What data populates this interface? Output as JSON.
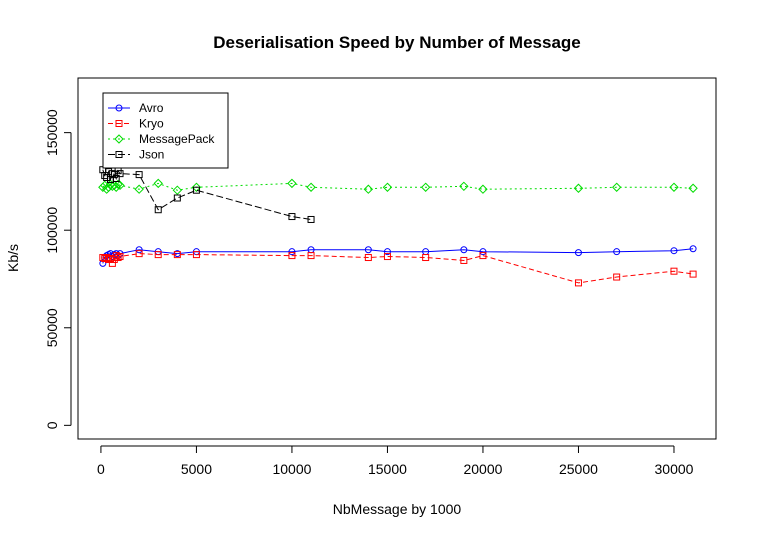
{
  "chart_data": {
    "type": "line",
    "title": "Deserialisation Speed by Number of Message",
    "xlabel": "NbMessage by 1000",
    "ylabel": "Kb/s",
    "xlim": [
      -1200,
      32200
    ],
    "ylim": [
      -7000,
      178000
    ],
    "xticks": [
      0,
      5000,
      10000,
      15000,
      20000,
      25000,
      30000
    ],
    "yticks": [
      0,
      50000,
      100000,
      150000
    ],
    "grid": false,
    "legend_position": "top-left",
    "series": [
      {
        "name": "Avro",
        "color": "#0000ff",
        "dash": "solid",
        "marker": "circle",
        "points": [
          [
            100,
            83000
          ],
          [
            200,
            86000
          ],
          [
            300,
            87000
          ],
          [
            400,
            87500
          ],
          [
            500,
            88000
          ],
          [
            600,
            86500
          ],
          [
            700,
            87500
          ],
          [
            800,
            88000
          ],
          [
            900,
            87000
          ],
          [
            1000,
            88000
          ],
          [
            2000,
            90000
          ],
          [
            3000,
            89000
          ],
          [
            4000,
            88000
          ],
          [
            5000,
            89000
          ],
          [
            10000,
            89000
          ],
          [
            11000,
            90000
          ],
          [
            14000,
            90000
          ],
          [
            15000,
            89000
          ],
          [
            17000,
            89000
          ],
          [
            19000,
            90000
          ],
          [
            20000,
            89000
          ],
          [
            25000,
            88500
          ],
          [
            27000,
            89000
          ],
          [
            30000,
            89500
          ],
          [
            31000,
            90500
          ]
        ]
      },
      {
        "name": "Kryo",
        "color": "#ff0000",
        "dash": "dashed",
        "marker": "square",
        "points": [
          [
            100,
            86000
          ],
          [
            200,
            85500
          ],
          [
            300,
            86000
          ],
          [
            400,
            85000
          ],
          [
            500,
            85500
          ],
          [
            600,
            83000
          ],
          [
            700,
            85000
          ],
          [
            800,
            87000
          ],
          [
            900,
            86000
          ],
          [
            1000,
            86500
          ],
          [
            2000,
            88000
          ],
          [
            3000,
            87500
          ],
          [
            4000,
            87500
          ],
          [
            5000,
            87500
          ],
          [
            10000,
            87000
          ],
          [
            11000,
            87000
          ],
          [
            14000,
            86000
          ],
          [
            15000,
            86500
          ],
          [
            17000,
            86000
          ],
          [
            19000,
            84500
          ],
          [
            20000,
            87000
          ],
          [
            25000,
            73000
          ],
          [
            27000,
            76000
          ],
          [
            30000,
            79000
          ],
          [
            31000,
            77500
          ]
        ]
      },
      {
        "name": "MessagePack",
        "color": "#00dd00",
        "dash": "dotted",
        "marker": "diamond",
        "points": [
          [
            100,
            122000
          ],
          [
            200,
            123000
          ],
          [
            300,
            121000
          ],
          [
            400,
            122000
          ],
          [
            500,
            123500
          ],
          [
            600,
            122500
          ],
          [
            700,
            123000
          ],
          [
            800,
            122000
          ],
          [
            900,
            123500
          ],
          [
            1000,
            123000
          ],
          [
            2000,
            121000
          ],
          [
            3000,
            124000
          ],
          [
            4000,
            120500
          ],
          [
            5000,
            122000
          ],
          [
            10000,
            124000
          ],
          [
            11000,
            122000
          ],
          [
            14000,
            121000
          ],
          [
            15000,
            122000
          ],
          [
            17000,
            122000
          ],
          [
            19000,
            122500
          ],
          [
            20000,
            121000
          ],
          [
            25000,
            121500
          ],
          [
            27000,
            122000
          ],
          [
            30000,
            122000
          ],
          [
            31000,
            121500
          ]
        ]
      },
      {
        "name": "Json",
        "color": "#000000",
        "dash": "longdash",
        "marker": "square",
        "points": [
          [
            100,
            131000
          ],
          [
            200,
            128000
          ],
          [
            300,
            127000
          ],
          [
            400,
            130000
          ],
          [
            500,
            126000
          ],
          [
            600,
            129000
          ],
          [
            700,
            128500
          ],
          [
            800,
            126500
          ],
          [
            900,
            130500
          ],
          [
            1000,
            129000
          ],
          [
            2000,
            128500
          ],
          [
            3000,
            110500
          ],
          [
            4000,
            116500
          ],
          [
            5000,
            120500
          ],
          [
            10000,
            107000
          ],
          [
            11000,
            105500
          ]
        ]
      }
    ]
  }
}
